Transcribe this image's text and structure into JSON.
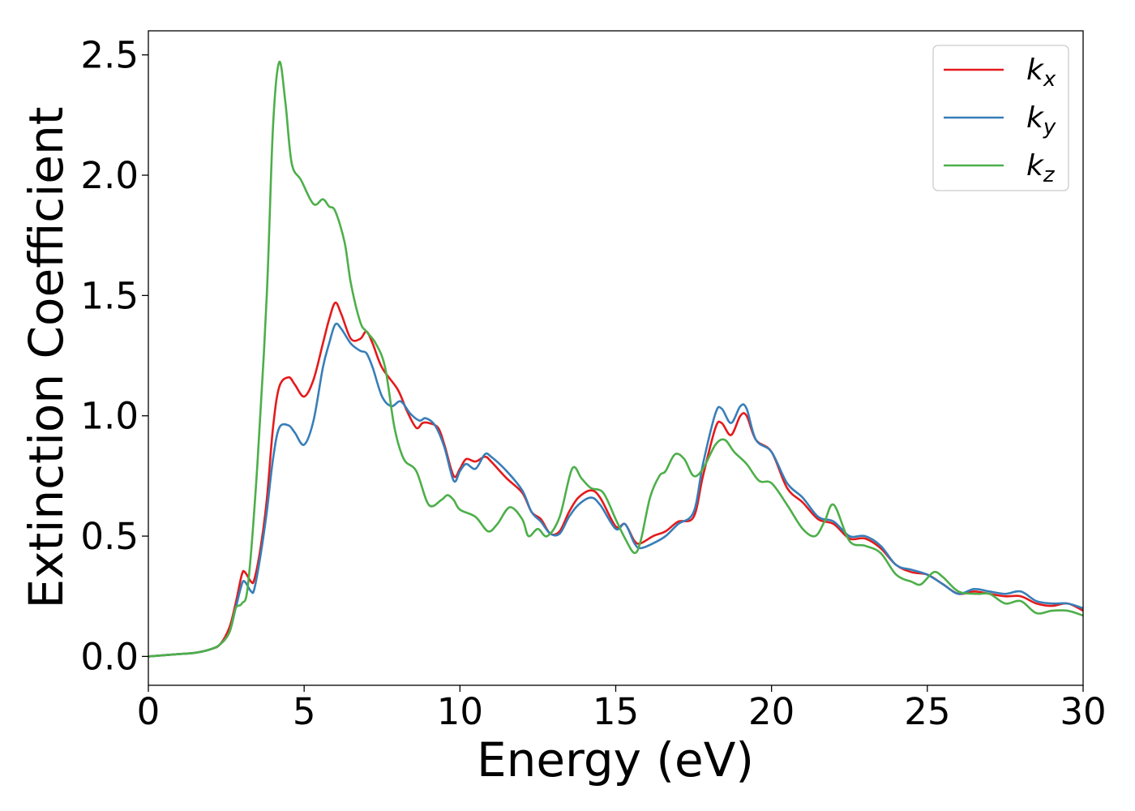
{
  "chart_data": {
    "type": "line",
    "title": "",
    "xlabel": "Energy (eV)",
    "ylabel": "Extinction Coefficient",
    "xlim": [
      0,
      30
    ],
    "ylim": [
      -0.12,
      2.6
    ],
    "xticks": [
      0,
      5,
      10,
      15,
      20,
      25,
      30
    ],
    "xtick_labels": [
      "0",
      "5",
      "10",
      "15",
      "20",
      "25",
      "30"
    ],
    "yticks": [
      0.0,
      0.5,
      1.0,
      1.5,
      2.0,
      2.5
    ],
    "ytick_labels": [
      "0.0",
      "0.5",
      "1.0",
      "1.5",
      "2.0",
      "2.5"
    ],
    "grid": false,
    "legend_position": "top-right",
    "series": [
      {
        "name": "k_x",
        "label_base": "k",
        "label_sub": "x",
        "color": "#e41a1c",
        "points": [
          [
            0,
            0
          ],
          [
            1,
            0.01
          ],
          [
            1.5,
            0.015
          ],
          [
            2,
            0.03
          ],
          [
            2.3,
            0.05
          ],
          [
            2.6,
            0.12
          ],
          [
            2.8,
            0.22
          ],
          [
            3.0,
            0.34
          ],
          [
            3.1,
            0.35
          ],
          [
            3.3,
            0.31
          ],
          [
            3.4,
            0.32
          ],
          [
            3.6,
            0.45
          ],
          [
            3.8,
            0.65
          ],
          [
            4.0,
            0.95
          ],
          [
            4.2,
            1.12
          ],
          [
            4.5,
            1.16
          ],
          [
            4.7,
            1.13
          ],
          [
            5.0,
            1.08
          ],
          [
            5.3,
            1.15
          ],
          [
            5.6,
            1.3
          ],
          [
            5.8,
            1.4
          ],
          [
            6.0,
            1.47
          ],
          [
            6.2,
            1.42
          ],
          [
            6.5,
            1.32
          ],
          [
            6.8,
            1.32
          ],
          [
            7.0,
            1.35
          ],
          [
            7.2,
            1.3
          ],
          [
            7.5,
            1.2
          ],
          [
            8.0,
            1.11
          ],
          [
            8.3,
            1.02
          ],
          [
            8.6,
            0.95
          ],
          [
            8.8,
            0.97
          ],
          [
            9.0,
            0.97
          ],
          [
            9.3,
            0.95
          ],
          [
            9.5,
            0.88
          ],
          [
            9.8,
            0.75
          ],
          [
            10.0,
            0.78
          ],
          [
            10.2,
            0.82
          ],
          [
            10.5,
            0.81
          ],
          [
            10.8,
            0.83
          ],
          [
            11.0,
            0.81
          ],
          [
            11.5,
            0.74
          ],
          [
            12.0,
            0.68
          ],
          [
            12.3,
            0.6
          ],
          [
            12.6,
            0.57
          ],
          [
            12.9,
            0.51
          ],
          [
            13.2,
            0.52
          ],
          [
            13.5,
            0.6
          ],
          [
            13.8,
            0.66
          ],
          [
            14.2,
            0.69
          ],
          [
            14.5,
            0.66
          ],
          [
            15.0,
            0.54
          ],
          [
            15.3,
            0.55
          ],
          [
            15.6,
            0.48
          ],
          [
            15.8,
            0.47
          ],
          [
            16.2,
            0.5
          ],
          [
            16.6,
            0.52
          ],
          [
            17.0,
            0.56
          ],
          [
            17.5,
            0.58
          ],
          [
            17.8,
            0.75
          ],
          [
            18.2,
            0.95
          ],
          [
            18.4,
            0.97
          ],
          [
            18.7,
            0.92
          ],
          [
            19.0,
            1.0
          ],
          [
            19.2,
            1.0
          ],
          [
            19.5,
            0.9
          ],
          [
            20.0,
            0.85
          ],
          [
            20.5,
            0.7
          ],
          [
            21.0,
            0.64
          ],
          [
            21.5,
            0.57
          ],
          [
            22.0,
            0.55
          ],
          [
            22.5,
            0.49
          ],
          [
            23.0,
            0.49
          ],
          [
            23.5,
            0.45
          ],
          [
            24.0,
            0.38
          ],
          [
            24.5,
            0.35
          ],
          [
            25.0,
            0.34
          ],
          [
            25.5,
            0.3
          ],
          [
            26.0,
            0.26
          ],
          [
            26.5,
            0.27
          ],
          [
            27.0,
            0.26
          ],
          [
            27.5,
            0.25
          ],
          [
            28.0,
            0.25
          ],
          [
            28.5,
            0.22
          ],
          [
            29.0,
            0.21
          ],
          [
            29.5,
            0.22
          ],
          [
            30.0,
            0.19
          ]
        ]
      },
      {
        "name": "k_y",
        "label_base": "k",
        "label_sub": "y",
        "color": "#377eb8",
        "points": [
          [
            0,
            0
          ],
          [
            1,
            0.01
          ],
          [
            1.5,
            0.015
          ],
          [
            2,
            0.03
          ],
          [
            2.3,
            0.05
          ],
          [
            2.6,
            0.1
          ],
          [
            2.8,
            0.2
          ],
          [
            3.0,
            0.3
          ],
          [
            3.1,
            0.31
          ],
          [
            3.3,
            0.27
          ],
          [
            3.4,
            0.28
          ],
          [
            3.6,
            0.42
          ],
          [
            3.8,
            0.6
          ],
          [
            4.0,
            0.82
          ],
          [
            4.2,
            0.95
          ],
          [
            4.5,
            0.96
          ],
          [
            4.7,
            0.93
          ],
          [
            5.0,
            0.88
          ],
          [
            5.3,
            0.98
          ],
          [
            5.6,
            1.2
          ],
          [
            5.8,
            1.3
          ],
          [
            6.0,
            1.38
          ],
          [
            6.2,
            1.36
          ],
          [
            6.5,
            1.3
          ],
          [
            6.8,
            1.27
          ],
          [
            7.0,
            1.26
          ],
          [
            7.2,
            1.2
          ],
          [
            7.5,
            1.08
          ],
          [
            7.8,
            1.04
          ],
          [
            8.1,
            1.06
          ],
          [
            8.4,
            1.01
          ],
          [
            8.7,
            0.98
          ],
          [
            8.9,
            0.99
          ],
          [
            9.2,
            0.96
          ],
          [
            9.5,
            0.87
          ],
          [
            9.8,
            0.73
          ],
          [
            10.0,
            0.77
          ],
          [
            10.2,
            0.8
          ],
          [
            10.5,
            0.78
          ],
          [
            10.8,
            0.84
          ],
          [
            11.0,
            0.83
          ],
          [
            11.5,
            0.77
          ],
          [
            12.0,
            0.69
          ],
          [
            12.3,
            0.6
          ],
          [
            12.6,
            0.56
          ],
          [
            12.9,
            0.51
          ],
          [
            13.2,
            0.51
          ],
          [
            13.5,
            0.58
          ],
          [
            13.8,
            0.63
          ],
          [
            14.2,
            0.66
          ],
          [
            14.5,
            0.63
          ],
          [
            15.0,
            0.53
          ],
          [
            15.3,
            0.55
          ],
          [
            15.6,
            0.47
          ],
          [
            15.8,
            0.45
          ],
          [
            16.2,
            0.47
          ],
          [
            16.6,
            0.5
          ],
          [
            17.0,
            0.55
          ],
          [
            17.5,
            0.6
          ],
          [
            17.8,
            0.8
          ],
          [
            18.2,
            1.01
          ],
          [
            18.4,
            1.03
          ],
          [
            18.7,
            0.97
          ],
          [
            19.0,
            1.04
          ],
          [
            19.2,
            1.03
          ],
          [
            19.5,
            0.9
          ],
          [
            20.0,
            0.85
          ],
          [
            20.5,
            0.72
          ],
          [
            21.0,
            0.66
          ],
          [
            21.5,
            0.58
          ],
          [
            22.0,
            0.56
          ],
          [
            22.5,
            0.5
          ],
          [
            23.0,
            0.5
          ],
          [
            23.5,
            0.46
          ],
          [
            24.0,
            0.38
          ],
          [
            24.5,
            0.36
          ],
          [
            25.0,
            0.34
          ],
          [
            25.5,
            0.3
          ],
          [
            26.0,
            0.26
          ],
          [
            26.5,
            0.28
          ],
          [
            27.0,
            0.27
          ],
          [
            27.5,
            0.26
          ],
          [
            28.0,
            0.27
          ],
          [
            28.5,
            0.23
          ],
          [
            29.0,
            0.22
          ],
          [
            29.5,
            0.22
          ],
          [
            30.0,
            0.2
          ]
        ]
      },
      {
        "name": "k_z",
        "label_base": "k",
        "label_sub": "z",
        "color": "#4daf4a",
        "points": [
          [
            0,
            0
          ],
          [
            1,
            0.01
          ],
          [
            1.5,
            0.015
          ],
          [
            2,
            0.03
          ],
          [
            2.3,
            0.05
          ],
          [
            2.6,
            0.1
          ],
          [
            2.8,
            0.2
          ],
          [
            3.0,
            0.22
          ],
          [
            3.2,
            0.3
          ],
          [
            3.5,
            0.8
          ],
          [
            3.8,
            1.5
          ],
          [
            4.0,
            2.2
          ],
          [
            4.2,
            2.47
          ],
          [
            4.4,
            2.3
          ],
          [
            4.6,
            2.05
          ],
          [
            4.9,
            1.98
          ],
          [
            5.3,
            1.88
          ],
          [
            5.6,
            1.9
          ],
          [
            5.8,
            1.87
          ],
          [
            6.0,
            1.85
          ],
          [
            6.3,
            1.72
          ],
          [
            6.5,
            1.55
          ],
          [
            6.8,
            1.39
          ],
          [
            7.0,
            1.35
          ],
          [
            7.3,
            1.3
          ],
          [
            7.6,
            1.2
          ],
          [
            7.9,
            0.95
          ],
          [
            8.2,
            0.82
          ],
          [
            8.6,
            0.77
          ],
          [
            9.0,
            0.63
          ],
          [
            9.4,
            0.65
          ],
          [
            9.6,
            0.67
          ],
          [
            9.8,
            0.65
          ],
          [
            10.0,
            0.61
          ],
          [
            10.5,
            0.58
          ],
          [
            10.9,
            0.52
          ],
          [
            11.2,
            0.55
          ],
          [
            11.6,
            0.62
          ],
          [
            12.0,
            0.57
          ],
          [
            12.2,
            0.5
          ],
          [
            12.5,
            0.53
          ],
          [
            12.8,
            0.5
          ],
          [
            13.2,
            0.58
          ],
          [
            13.6,
            0.78
          ],
          [
            13.9,
            0.74
          ],
          [
            14.2,
            0.7
          ],
          [
            14.6,
            0.68
          ],
          [
            15.0,
            0.57
          ],
          [
            15.3,
            0.49
          ],
          [
            15.6,
            0.43
          ],
          [
            15.8,
            0.48
          ],
          [
            16.1,
            0.66
          ],
          [
            16.4,
            0.75
          ],
          [
            16.6,
            0.77
          ],
          [
            16.9,
            0.84
          ],
          [
            17.2,
            0.82
          ],
          [
            17.5,
            0.75
          ],
          [
            17.8,
            0.78
          ],
          [
            18.2,
            0.88
          ],
          [
            18.5,
            0.9
          ],
          [
            18.8,
            0.85
          ],
          [
            19.2,
            0.8
          ],
          [
            19.6,
            0.73
          ],
          [
            20.0,
            0.72
          ],
          [
            20.5,
            0.63
          ],
          [
            21.0,
            0.53
          ],
          [
            21.4,
            0.5
          ],
          [
            21.7,
            0.56
          ],
          [
            22.0,
            0.63
          ],
          [
            22.5,
            0.48
          ],
          [
            23.0,
            0.46
          ],
          [
            23.5,
            0.43
          ],
          [
            24.0,
            0.34
          ],
          [
            24.5,
            0.31
          ],
          [
            24.8,
            0.3
          ],
          [
            25.2,
            0.35
          ],
          [
            25.5,
            0.33
          ],
          [
            26.0,
            0.27
          ],
          [
            26.6,
            0.26
          ],
          [
            27.0,
            0.26
          ],
          [
            27.5,
            0.22
          ],
          [
            28.0,
            0.23
          ],
          [
            28.5,
            0.18
          ],
          [
            29.0,
            0.19
          ],
          [
            29.5,
            0.19
          ],
          [
            30.0,
            0.17
          ]
        ]
      }
    ]
  }
}
